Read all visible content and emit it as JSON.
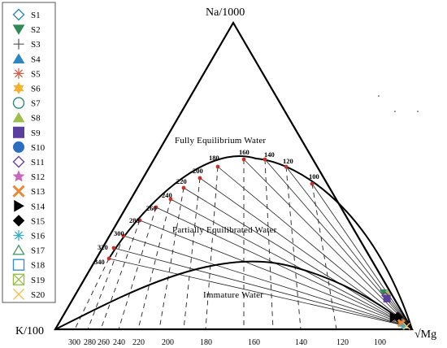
{
  "chart_data": {
    "type": "scatter",
    "subtype": "ternary Na-K-Mg giggenbach diagram",
    "corners": {
      "top": "Na/1000",
      "bottom_left": "K/100",
      "bottom_right": "√Mg"
    },
    "regions": {
      "full": "Fully Equilibrium Water",
      "partial": "Partially Equilibrated Water",
      "immature": "Immature Water"
    },
    "bottom_ticks": [
      "300",
      "280",
      "260",
      "240",
      "220",
      "200",
      "180",
      "160",
      "140",
      "120",
      "100"
    ],
    "curve_labels": [
      "340",
      "320",
      "300",
      "280",
      "260",
      "240",
      "220",
      "200",
      "180",
      "160",
      "140",
      "120",
      "100"
    ],
    "legend": [
      {
        "name": "S1",
        "marker": "diamond-open",
        "color": "#2e86c1"
      },
      {
        "name": "S2",
        "marker": "triangle-down",
        "color": "#2e8b57"
      },
      {
        "name": "S3",
        "marker": "plus",
        "color": "#555555"
      },
      {
        "name": "S4",
        "marker": "triangle-up",
        "color": "#2e86c1"
      },
      {
        "name": "S5",
        "marker": "asterisk",
        "color": "#d4614e"
      },
      {
        "name": "S6",
        "marker": "star6",
        "color": "#f2b233"
      },
      {
        "name": "S7",
        "marker": "circle-open",
        "color": "#2a8a7a"
      },
      {
        "name": "S8",
        "marker": "triangle-up",
        "color": "#9bbf4a"
      },
      {
        "name": "S9",
        "marker": "square",
        "color": "#5b3f9e"
      },
      {
        "name": "S10",
        "marker": "circle",
        "color": "#2c6fbf"
      },
      {
        "name": "S11",
        "marker": "diamond-open",
        "color": "#6b3fa0"
      },
      {
        "name": "S12",
        "marker": "star5",
        "color": "#c966c0"
      },
      {
        "name": "S13",
        "marker": "x",
        "color": "#e8893a"
      },
      {
        "name": "S14",
        "marker": "triangle-right",
        "color": "#000000"
      },
      {
        "name": "S15",
        "marker": "diamond",
        "color": "#000000"
      },
      {
        "name": "S16",
        "marker": "asterisk",
        "color": "#3aaec9"
      },
      {
        "name": "S17",
        "marker": "triangle-open",
        "color": "#4a9e6a"
      },
      {
        "name": "S18",
        "marker": "square-open",
        "color": "#3a8fc9"
      },
      {
        "name": "S19",
        "marker": "square-x",
        "color": "#9bbf4a"
      },
      {
        "name": "S20",
        "marker": "x-thin",
        "color": "#f2c14e"
      }
    ],
    "samples": [
      {
        "name": "S2",
        "na": 0.12,
        "k": 0.02,
        "mg": 0.86
      },
      {
        "name": "S8",
        "na": 0.12,
        "k": 0.01,
        "mg": 0.87
      },
      {
        "name": "S11",
        "na": 0.11,
        "k": 0.02,
        "mg": 0.87
      },
      {
        "name": "S9",
        "na": 0.1,
        "k": 0.02,
        "mg": 0.88
      },
      {
        "name": "S14",
        "na": 0.04,
        "k": 0.03,
        "mg": 0.93
      },
      {
        "name": "S15",
        "na": 0.04,
        "k": 0.02,
        "mg": 0.94
      },
      {
        "name": "S5",
        "na": 0.02,
        "k": 0.02,
        "mg": 0.96
      },
      {
        "name": "S13",
        "na": 0.02,
        "k": 0.02,
        "mg": 0.96
      },
      {
        "name": "S16",
        "na": 0.01,
        "k": 0.02,
        "mg": 0.97
      },
      {
        "name": "S20",
        "na": 0.01,
        "k": 0.01,
        "mg": 0.98
      }
    ]
  }
}
